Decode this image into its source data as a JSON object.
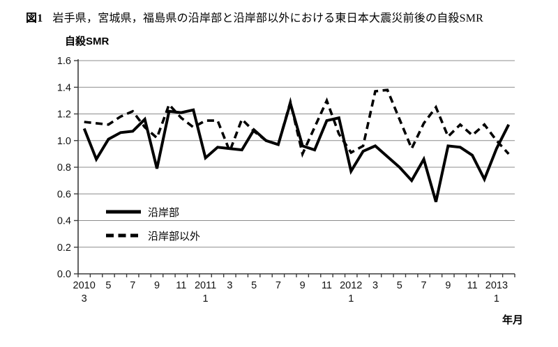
{
  "figure": {
    "caption_prefix": "図1",
    "caption": "岩手県，宮城県，福島県の沿岸部と沿岸部以外における東日本大震災前後の自殺SMR",
    "y_axis_title": "自殺SMR",
    "x_axis_title": "年月"
  },
  "chart_data": {
    "type": "line",
    "title": "岩手県，宮城県，福島県の沿岸部と沿岸部以外における東日本大震災前後の自殺SMR",
    "ylabel": "自殺SMR",
    "xlabel": "年月",
    "ylim": [
      0.0,
      1.6
    ],
    "ytick_step": 0.2,
    "ytick_labels": [
      "0.0",
      "0.2",
      "0.4",
      "0.6",
      "0.8",
      "1.0",
      "1.2",
      "1.4",
      "1.6"
    ],
    "grid": "horizontal-gray",
    "legend_position": "inside-lower-left",
    "x_categories": [
      "2010-03",
      "2010-04",
      "2010-05",
      "2010-06",
      "2010-07",
      "2010-08",
      "2010-09",
      "2010-10",
      "2010-11",
      "2010-12",
      "2011-01",
      "2011-02",
      "2011-03",
      "2011-04",
      "2011-05",
      "2011-06",
      "2011-07",
      "2011-08",
      "2011-09",
      "2011-10",
      "2011-11",
      "2011-12",
      "2012-01",
      "2012-02",
      "2012-03",
      "2012-04",
      "2012-05",
      "2012-06",
      "2012-07",
      "2012-08",
      "2012-09",
      "2012-10",
      "2012-11",
      "2012-12",
      "2013-01",
      "2013-02"
    ],
    "x_tick_labels": [
      {
        "index": 0,
        "top": "2010",
        "bottom": "3"
      },
      {
        "index": 2,
        "top": "5"
      },
      {
        "index": 4,
        "top": "7"
      },
      {
        "index": 6,
        "top": "9"
      },
      {
        "index": 8,
        "top": "11"
      },
      {
        "index": 10,
        "top": "2011",
        "bottom": "1"
      },
      {
        "index": 12,
        "top": "3"
      },
      {
        "index": 14,
        "top": "5"
      },
      {
        "index": 16,
        "top": "7"
      },
      {
        "index": 18,
        "top": "9"
      },
      {
        "index": 20,
        "top": "11"
      },
      {
        "index": 22,
        "top": "2012",
        "bottom": "1"
      },
      {
        "index": 24,
        "top": "3"
      },
      {
        "index": 26,
        "top": "5"
      },
      {
        "index": 28,
        "top": "7"
      },
      {
        "index": 30,
        "top": "9"
      },
      {
        "index": 32,
        "top": "11"
      },
      {
        "index": 34,
        "top": "2013",
        "bottom": "1"
      }
    ],
    "series": [
      {
        "name": "沿岸部",
        "style": "solid",
        "color": "#000000",
        "values": [
          1.09,
          0.86,
          1.01,
          1.06,
          1.07,
          1.16,
          0.79,
          1.22,
          1.21,
          1.23,
          0.87,
          0.95,
          0.94,
          0.93,
          1.08,
          1.0,
          0.97,
          1.28,
          0.96,
          0.93,
          1.15,
          1.17,
          0.77,
          0.92,
          0.96,
          0.88,
          0.8,
          0.7,
          0.86,
          0.54,
          0.96,
          0.95,
          0.89,
          0.71,
          0.94,
          1.12
        ]
      },
      {
        "name": "沿岸部以外",
        "style": "dashed",
        "color": "#000000",
        "values": [
          1.14,
          1.13,
          1.12,
          1.18,
          1.22,
          1.1,
          1.02,
          1.27,
          1.17,
          1.1,
          1.15,
          1.15,
          0.92,
          1.16,
          1.07,
          1.0,
          0.97,
          1.29,
          0.9,
          1.1,
          1.3,
          1.05,
          0.91,
          0.96,
          1.37,
          1.38,
          1.16,
          0.94,
          1.13,
          1.25,
          1.03,
          1.12,
          1.04,
          1.12,
          1.0,
          0.9
        ]
      }
    ],
    "colors": {
      "axis": "#3a3a3a",
      "grid": "#8c8c8c",
      "line": "#000000",
      "background": "#ffffff"
    }
  }
}
